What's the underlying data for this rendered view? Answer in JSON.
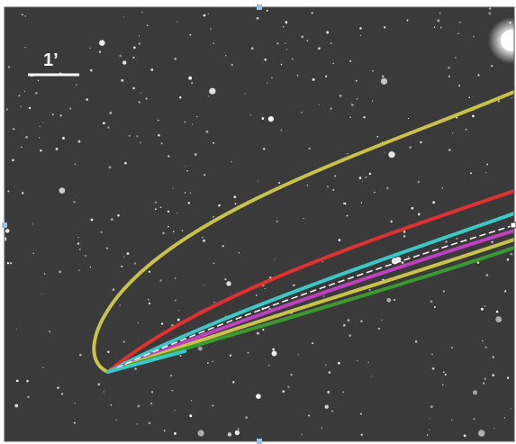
{
  "image": {
    "scale_bar_label": "1’"
  }
}
